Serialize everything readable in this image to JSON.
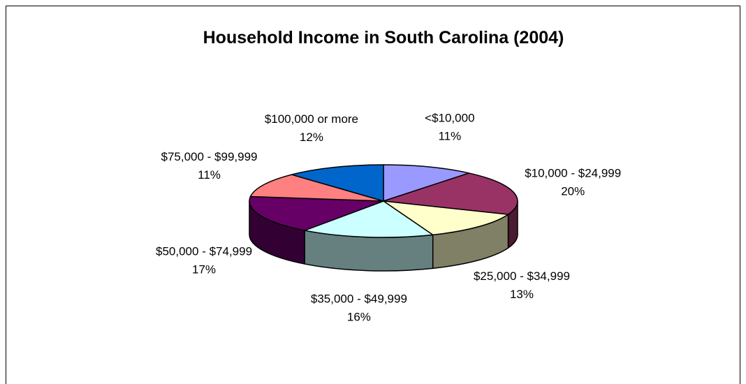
{
  "chart_data": {
    "type": "pie",
    "title": "Household Income in South Carolina (2004)",
    "categories": [
      "<$10,000",
      "$10,000 - $24,999",
      "$25,000 - $34,999",
      "$35,000 - $49,999",
      "$50,000 - $74,999",
      "$75,000 - $99,999",
      "$100,000 or more"
    ],
    "values": [
      11,
      20,
      13,
      16,
      17,
      11,
      12
    ],
    "value_labels": [
      "11%",
      "20%",
      "13%",
      "16%",
      "17%",
      "11%",
      "12%"
    ],
    "colors": [
      "#9999ff",
      "#993366",
      "#ffffcc",
      "#ccffff",
      "#660066",
      "#ff8080",
      "#0066cc"
    ]
  }
}
